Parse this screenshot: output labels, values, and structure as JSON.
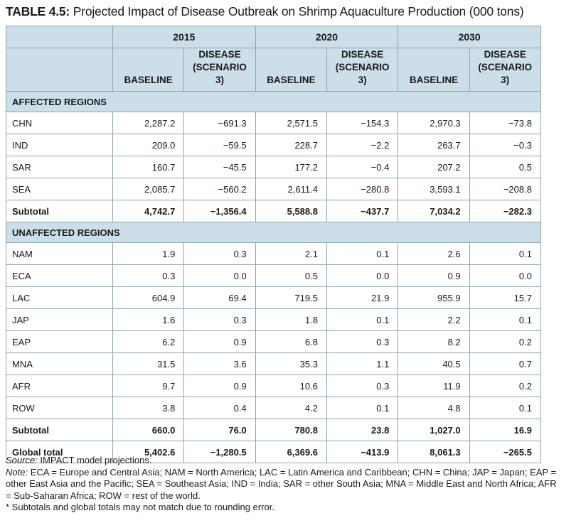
{
  "title": {
    "label": "TABLE 4.5:",
    "text": "Projected Impact of Disease Outbreak on Shrimp Aquaculture Production (000 tons)"
  },
  "years": [
    "2015",
    "2020",
    "2030"
  ],
  "subheaders": {
    "baseline": "BASELINE",
    "disease_line1": "DISEASE",
    "disease_line2": "(SCENARIO 3)"
  },
  "sections": {
    "affected": "AFFECTED REGIONS",
    "unaffected": "UNAFFECTED REGIONS"
  },
  "affected_rows": [
    {
      "region": "CHN",
      "v": [
        "2,287.2",
        "−691.3",
        "2,571.5",
        "−154.3",
        "2,970.3",
        "−73.8"
      ]
    },
    {
      "region": "IND",
      "v": [
        "209.0",
        "−59.5",
        "228.7",
        "−2.2",
        "263.7",
        "−0.3"
      ]
    },
    {
      "region": "SAR",
      "v": [
        "160.7",
        "−45.5",
        "177.2",
        "−0.4",
        "207.2",
        "0.5"
      ]
    },
    {
      "region": "SEA",
      "v": [
        "2,085.7",
        "−560.2",
        "2,611.4",
        "−280.8",
        "3,593.1",
        "−208.8"
      ]
    }
  ],
  "affected_subtotal": {
    "label": "Subtotal",
    "v": [
      "4,742.7",
      "−1,356.4",
      "5,588.8",
      "−437.7",
      "7,034.2",
      "−282.3"
    ]
  },
  "unaffected_rows": [
    {
      "region": "NAM",
      "v": [
        "1.9",
        "0.3",
        "2.1",
        "0.1",
        "2.6",
        "0.1"
      ]
    },
    {
      "region": "ECA",
      "v": [
        "0.3",
        "0.0",
        "0.5",
        "0.0",
        "0.9",
        "0.0"
      ]
    },
    {
      "region": "LAC",
      "v": [
        "604.9",
        "69.4",
        "719.5",
        "21.9",
        "955.9",
        "15.7"
      ]
    },
    {
      "region": "JAP",
      "v": [
        "1.6",
        "0.3",
        "1.8",
        "0.1",
        "2.2",
        "0.1"
      ]
    },
    {
      "region": "EAP",
      "v": [
        "6.2",
        "0.9",
        "6.8",
        "0.3",
        "8.2",
        "0.2"
      ]
    },
    {
      "region": "MNA",
      "v": [
        "31.5",
        "3.6",
        "35.3",
        "1.1",
        "40.5",
        "0.7"
      ]
    },
    {
      "region": "AFR",
      "v": [
        "9.7",
        "0.9",
        "10.6",
        "0.3",
        "11.9",
        "0.2"
      ]
    },
    {
      "region": "ROW",
      "v": [
        "3.8",
        "0.4",
        "4.2",
        "0.1",
        "4.8",
        "0.1"
      ]
    }
  ],
  "unaffected_subtotal": {
    "label": "Subtotal",
    "v": [
      "660.0",
      "76.0",
      "780.8",
      "23.8",
      "1,027.0",
      "16.9"
    ]
  },
  "global_total": {
    "label": "Global total",
    "v": [
      "5,402.6",
      "−1,280.5",
      "6,369.6",
      "−413.9",
      "8,061.3",
      "−265.5"
    ]
  },
  "notes": {
    "source_label": "Source:",
    "source_text": " IMPACT model projections.",
    "note_label": "Note:",
    "note_text": " ECA = Europe and Central Asia; NAM = North America; LAC = Latin America and Caribbean; CHN = China; JAP = Japan; EAP = other East Asia and the Pacific; SEA = Southeast Asia; IND = India; SAR = other South Asia; MNA = Middle East and North Africa; AFR = Sub-Saharan Africa; ROW = rest of the world.",
    "footnote": "* Subtotals and global totals may not match due to rounding error."
  },
  "colors": {
    "header_fill": "#ccdfe9",
    "border": "#8aa4b6"
  }
}
